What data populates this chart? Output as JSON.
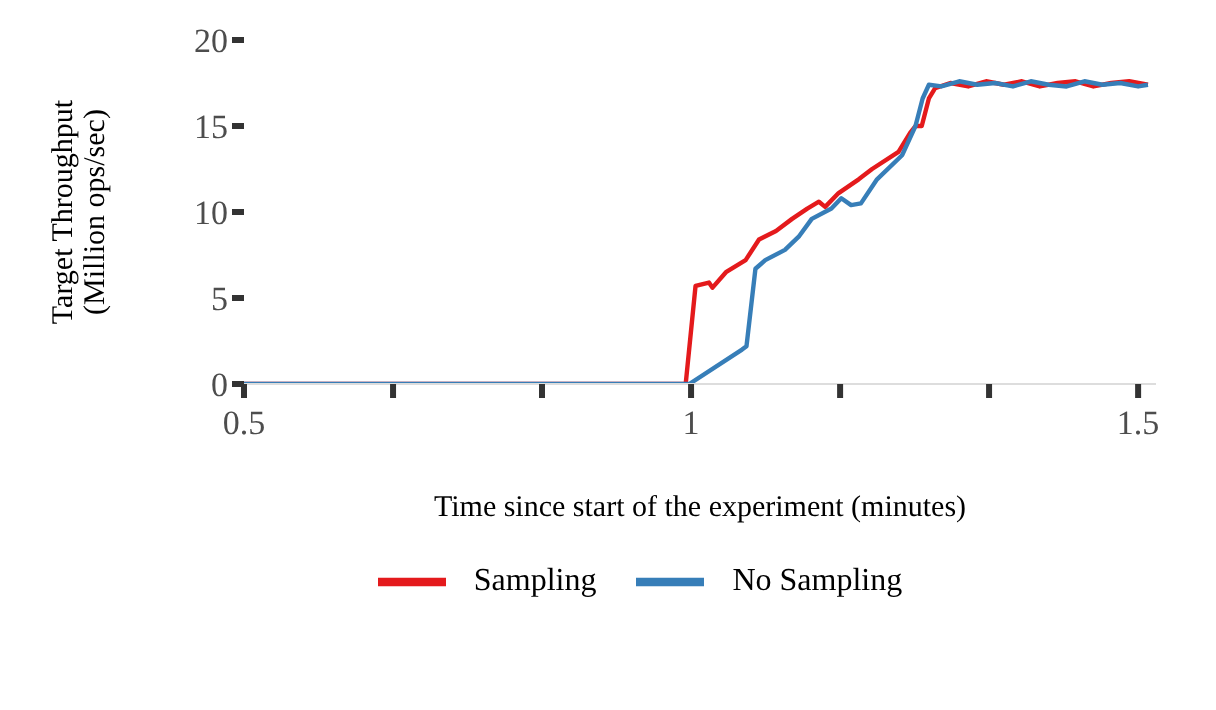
{
  "chart_data": {
    "type": "line",
    "xlabel": "Time since start of the experiment (minutes)",
    "ylabel": "Target Throughput\n(Million ops/sec)",
    "xlim": [
      0.5,
      1.52
    ],
    "ylim": [
      0,
      20
    ],
    "xticks": [
      0.5,
      {
        "value": 0.6667,
        "label": null
      },
      {
        "value": 0.8333,
        "label": null
      },
      1,
      {
        "value": 1.1667,
        "label": null
      },
      {
        "value": 1.3333,
        "label": null
      },
      1.5
    ],
    "yticks": [
      0,
      5,
      10,
      15,
      20
    ],
    "grid": false,
    "legend": "bottom",
    "marker": "none",
    "line_style": "solid",
    "series": [
      {
        "name": "Sampling",
        "color": "#e41a1c",
        "x": [
          0.5,
          0.994,
          1.005,
          1.02,
          1.024,
          1.039,
          1.061,
          1.076,
          1.095,
          1.113,
          1.13,
          1.143,
          1.15,
          1.165,
          1.1875,
          1.2025,
          1.232,
          1.245,
          1.251,
          1.258,
          1.266,
          1.273,
          1.29,
          1.31,
          1.33,
          1.35,
          1.37,
          1.39,
          1.41,
          1.43,
          1.45,
          1.47,
          1.49,
          1.511
        ],
        "values": [
          0,
          0,
          5.7,
          5.9,
          5.6,
          6.5,
          7.2,
          8.4,
          8.9,
          9.6,
          10.2,
          10.6,
          10.3,
          11.1,
          11.9,
          12.5,
          13.5,
          14.6,
          15.0,
          15.0,
          16.6,
          17.2,
          17.5,
          17.3,
          17.6,
          17.4,
          17.6,
          17.3,
          17.5,
          17.6,
          17.3,
          17.5,
          17.6,
          17.4
        ]
      },
      {
        "name": "No Sampling",
        "color": "#377eb8",
        "x": [
          0.5,
          0.998,
          1.057,
          1.062,
          1.072,
          1.083,
          1.105,
          1.121,
          1.135,
          1.157,
          1.168,
          1.179,
          1.19,
          1.208,
          1.236,
          1.251,
          1.259,
          1.266,
          1.28,
          1.3,
          1.32,
          1.34,
          1.36,
          1.38,
          1.4,
          1.42,
          1.44,
          1.46,
          1.48,
          1.5,
          1.511
        ],
        "values": [
          0,
          0,
          2.0,
          2.2,
          6.7,
          7.2,
          7.8,
          8.6,
          9.6,
          10.2,
          10.8,
          10.4,
          10.5,
          11.9,
          13.3,
          15.0,
          16.6,
          17.4,
          17.3,
          17.6,
          17.4,
          17.5,
          17.3,
          17.6,
          17.4,
          17.3,
          17.6,
          17.4,
          17.5,
          17.3,
          17.4
        ]
      }
    ]
  }
}
